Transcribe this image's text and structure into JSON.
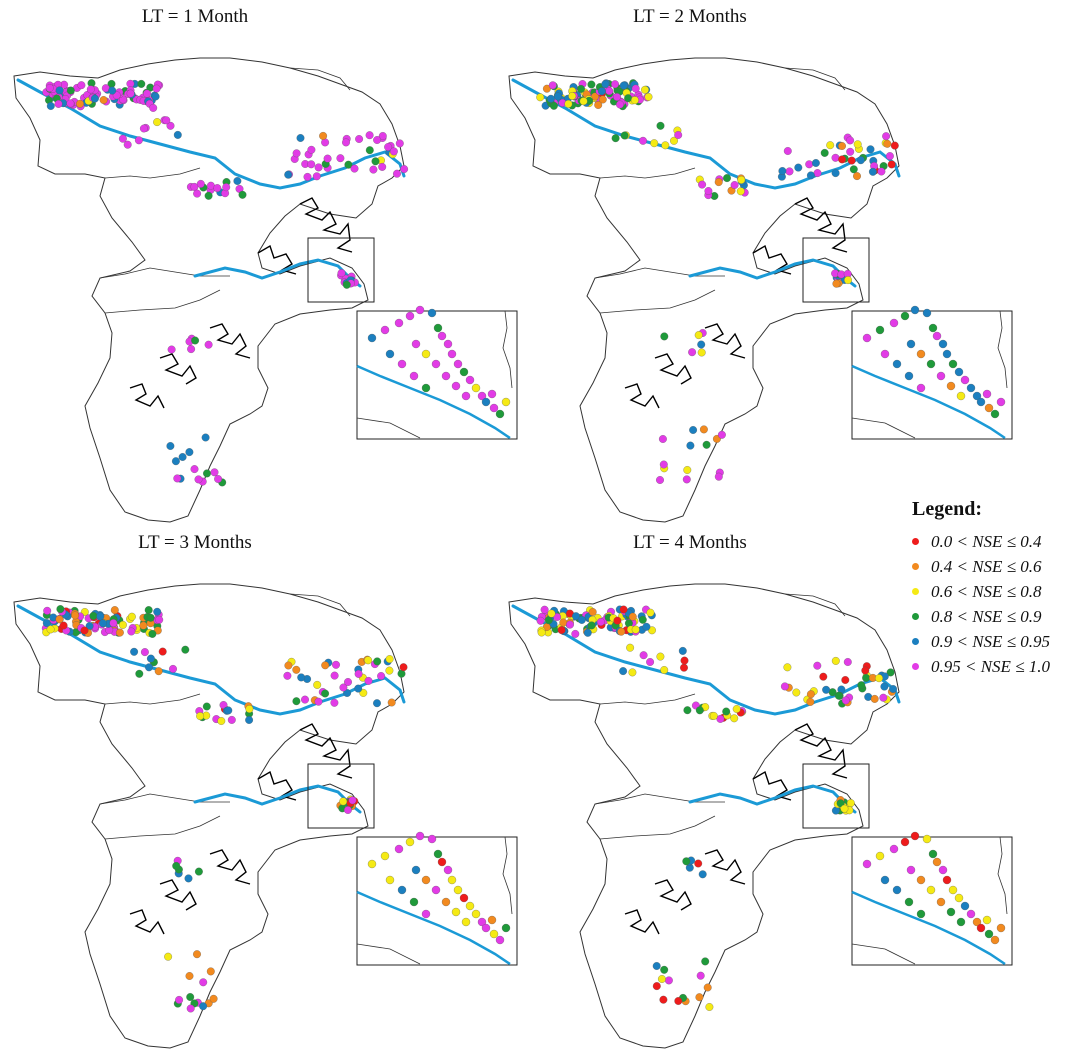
{
  "panels": [
    {
      "title": "LT = 1 Month",
      "color_weights": [
        0,
        1,
        2,
        8,
        10,
        40
      ]
    },
    {
      "title": "LT = 2 Months",
      "color_weights": [
        2,
        6,
        12,
        14,
        12,
        20
      ]
    },
    {
      "title": "LT = 3 Months",
      "color_weights": [
        3,
        10,
        12,
        12,
        12,
        16
      ]
    },
    {
      "title": "LT = 4 Months",
      "color_weights": [
        6,
        12,
        14,
        12,
        12,
        12
      ]
    }
  ],
  "legend": {
    "title": "Legend:",
    "classes": [
      {
        "label": "0.0 < NSE ≤ 0.4",
        "color": "#ee1c1c"
      },
      {
        "label": "0.4 < NSE ≤ 0.6",
        "color": "#f28a1f"
      },
      {
        "label": "0.6 < NSE ≤ 0.8",
        "color": "#f5ea14"
      },
      {
        "label": "0.8 < NSE ≤ 0.9",
        "color": "#1f9a3a"
      },
      {
        "label": "0.9 < NSE ≤ 0.95",
        "color": "#1b7fbf"
      },
      {
        "label": "0.95 < NSE ≤ 1.0",
        "color": "#e23be6"
      }
    ]
  },
  "colors": {
    "river": "#1b9ad6",
    "boundary": "#333333",
    "coast": "#000000"
  }
}
